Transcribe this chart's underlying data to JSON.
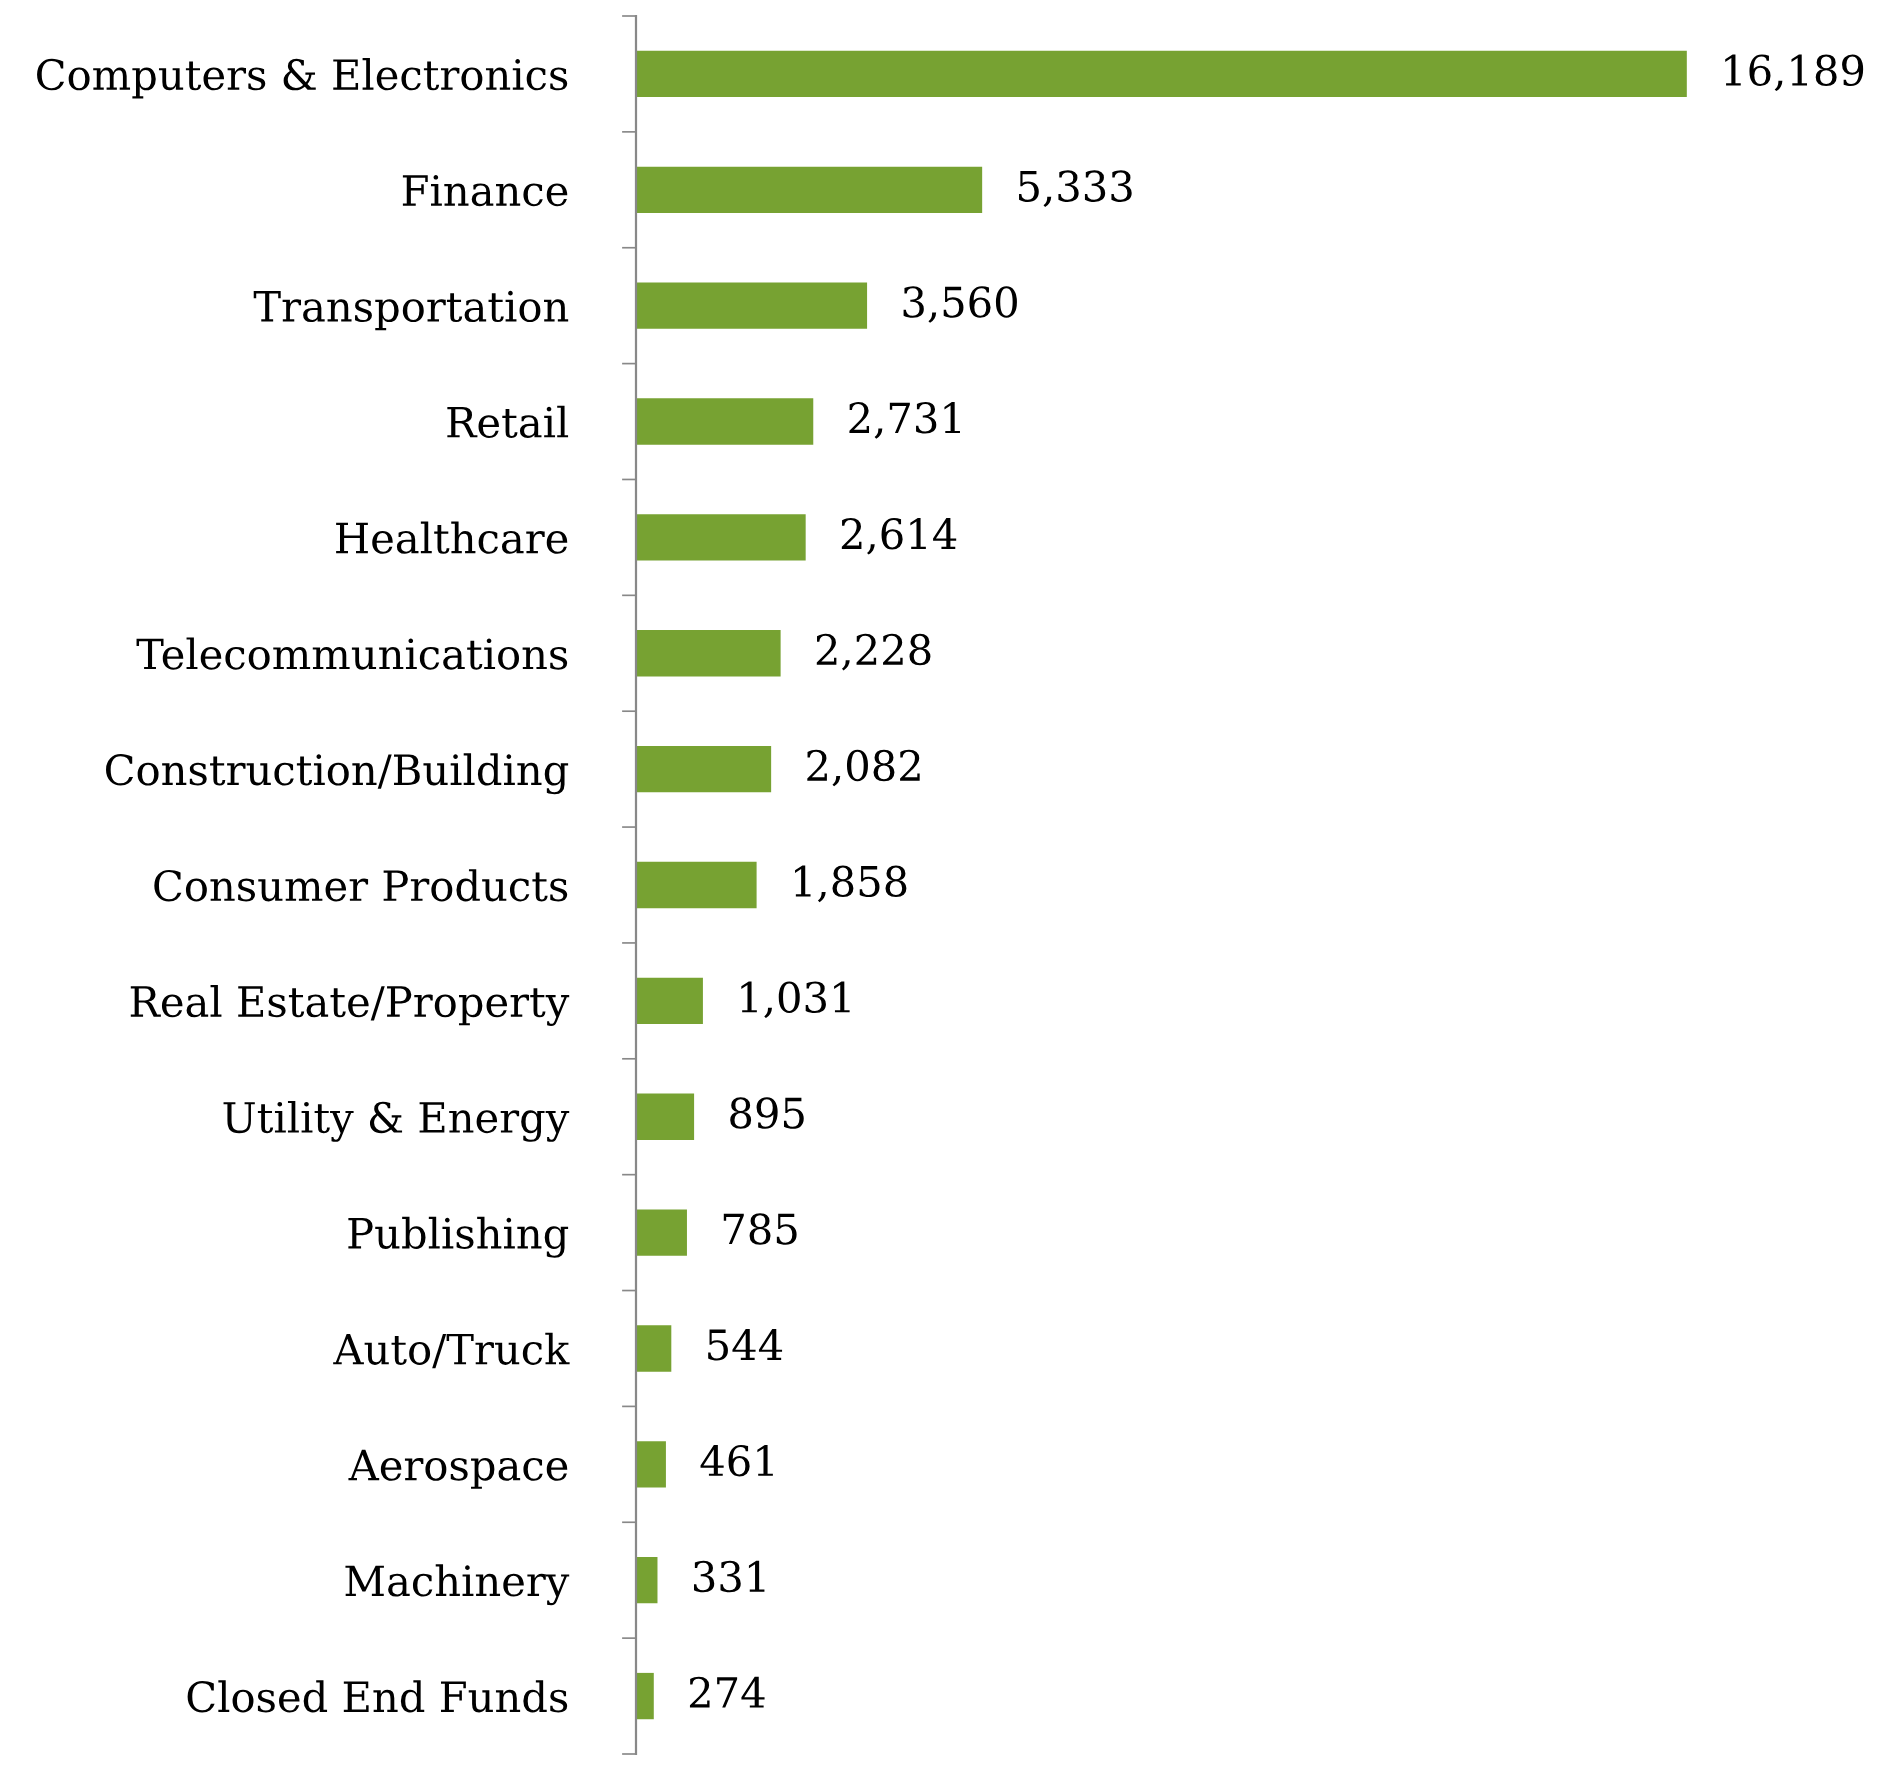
{
  "chart_data": {
    "type": "bar",
    "orientation": "horizontal",
    "grid": false,
    "legend": false,
    "value_labels": [
      "16,189",
      "5,333",
      "3,560",
      "2,731",
      "2,614",
      "2,228",
      "2,082",
      "1,858",
      "1,031",
      "895",
      "785",
      "544",
      "461",
      "331",
      "274"
    ],
    "categories": [
      "Computers & Electronics",
      "Finance",
      "Transportation",
      "Retail",
      "Healthcare",
      "Telecommunications",
      "Construction/Building",
      "Consumer Products",
      "Real Estate/Property",
      "Utility & Energy",
      "Publishing",
      "Auto/Truck",
      "Aerospace",
      "Machinery",
      "Closed End Funds"
    ],
    "values": [
      16189,
      5333,
      3560,
      2731,
      2614,
      2228,
      2082,
      1858,
      1031,
      895,
      785,
      544,
      461,
      331,
      274
    ],
    "color": "#77a232"
  }
}
